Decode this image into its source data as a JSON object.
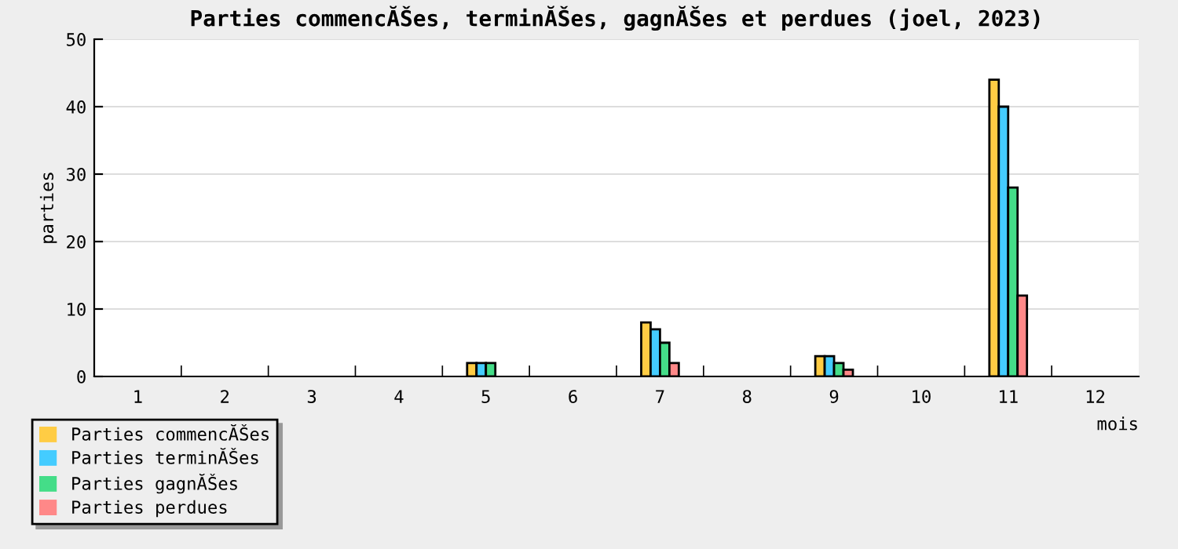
{
  "chart_data": {
    "type": "bar",
    "title": "Parties commencĂŠes, terminĂŠes, gagnĂŠes et perdues (joel, 2023)",
    "xlabel": "mois",
    "ylabel": "parties",
    "categories": [
      "1",
      "2",
      "3",
      "4",
      "5",
      "6",
      "7",
      "8",
      "9",
      "10",
      "11",
      "12"
    ],
    "series": [
      {
        "name": "Parties commencĂŠes",
        "color": "#ffcc44",
        "values": [
          0,
          0,
          0,
          0,
          2,
          0,
          8,
          0,
          3,
          0,
          44,
          0
        ]
      },
      {
        "name": "Parties terminĂŠes",
        "color": "#44ccff",
        "values": [
          0,
          0,
          0,
          0,
          2,
          0,
          7,
          0,
          3,
          0,
          40,
          0
        ]
      },
      {
        "name": "Parties gagnĂŠes",
        "color": "#44dd88",
        "values": [
          0,
          0,
          0,
          0,
          2,
          0,
          5,
          0,
          2,
          0,
          28,
          0
        ]
      },
      {
        "name": "Parties perdues",
        "color": "#ff8888",
        "values": [
          0,
          0,
          0,
          0,
          0,
          0,
          2,
          0,
          1,
          0,
          12,
          0
        ]
      }
    ],
    "ylim": [
      0,
      50
    ],
    "yticks": [
      0,
      10,
      20,
      30,
      40,
      50
    ],
    "grid": "y",
    "legend": "bottom left"
  }
}
